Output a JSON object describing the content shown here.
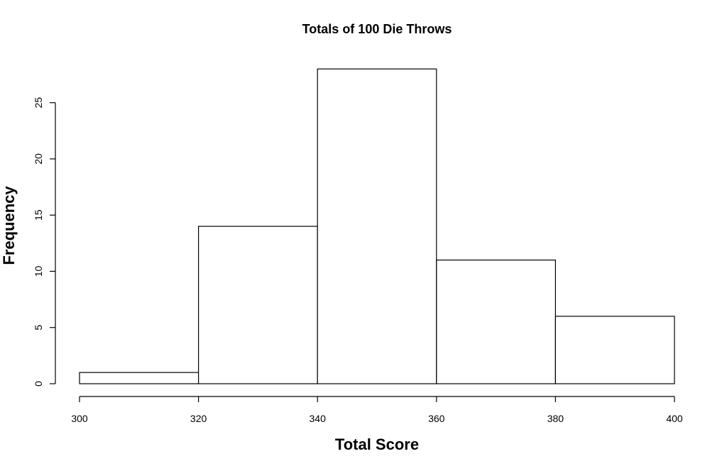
{
  "chart_data": {
    "type": "bar",
    "title": "Totals of 100 Die Throws",
    "xlabel": "Total Score",
    "ylabel": "Frequency",
    "bins": [
      [
        300,
        320
      ],
      [
        320,
        340
      ],
      [
        340,
        360
      ],
      [
        360,
        380
      ],
      [
        380,
        400
      ]
    ],
    "values": [
      1,
      14,
      28,
      11,
      6
    ],
    "xticks": [
      "300",
      "320",
      "340",
      "360",
      "380",
      "400"
    ],
    "yticks": [
      "0",
      "5",
      "10",
      "15",
      "20",
      "25"
    ],
    "xlim": [
      300,
      400
    ],
    "ylim": [
      0,
      25
    ],
    "grid": false,
    "bar_fill": "#ffffff",
    "bar_stroke": "#000000"
  }
}
